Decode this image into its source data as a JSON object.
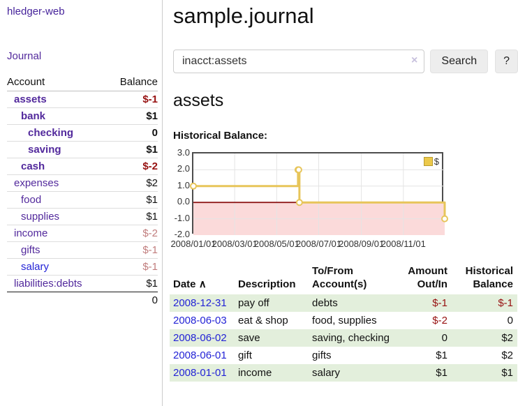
{
  "app": {
    "brand": "hledger-web"
  },
  "sidebar": {
    "journal_link": "Journal",
    "accounts": {
      "header_account": "Account",
      "header_balance": "Balance",
      "rows": [
        {
          "name": "assets",
          "balance": "$-1",
          "depth": 1,
          "name_style": "purple bold",
          "bal_style": "neg bold"
        },
        {
          "name": "bank",
          "balance": "$1",
          "depth": 2,
          "name_style": "purple bold",
          "bal_style": "plain bold"
        },
        {
          "name": "checking",
          "balance": "0",
          "depth": 3,
          "name_style": "purple bold",
          "bal_style": "plain bold"
        },
        {
          "name": "saving",
          "balance": "$1",
          "depth": 3,
          "name_style": "purple bold",
          "bal_style": "plain bold"
        },
        {
          "name": "cash",
          "balance": "$-2",
          "depth": 2,
          "name_style": "purple bold",
          "bal_style": "neg bold"
        },
        {
          "name": "expenses",
          "balance": "$2",
          "depth": 1,
          "name_style": "purple",
          "bal_style": "plain"
        },
        {
          "name": "food",
          "balance": "$1",
          "depth": 2,
          "name_style": "purple",
          "bal_style": "plain"
        },
        {
          "name": "supplies",
          "balance": "$1",
          "depth": 2,
          "name_style": "purple",
          "bal_style": "plain"
        },
        {
          "name": "income",
          "balance": "$-2",
          "depth": 1,
          "name_style": "purple",
          "bal_style": "muted"
        },
        {
          "name": "gifts",
          "balance": "$-1",
          "depth": 2,
          "name_style": "purple",
          "bal_style": "muted"
        },
        {
          "name": "salary",
          "balance": "$-1",
          "depth": 2,
          "name_style": "blue",
          "bal_style": "muted"
        },
        {
          "name": "liabilities:debts",
          "balance": "$1",
          "depth": 1,
          "name_style": "purple",
          "bal_style": "plain"
        }
      ],
      "total": "0"
    }
  },
  "main": {
    "title": "sample.journal",
    "search": {
      "value": "inacct:assets",
      "clear_icon": "×",
      "search_button": "Search",
      "help_button": "?"
    },
    "account_heading": "assets",
    "chart_title": "Historical Balance:"
  },
  "chart_data": {
    "type": "line",
    "step": true,
    "title": "Historical Balance",
    "x_domain": [
      "2008-01-01",
      "2008-12-31"
    ],
    "ylim": [
      -2,
      3
    ],
    "y_ticks": [
      "3.0",
      "2.0",
      "1.0",
      "0.0",
      "-1.0",
      "-2.0"
    ],
    "x_ticks": [
      "2008/01/01",
      "2008/03/01",
      "2008/05/01",
      "2008/07/01",
      "2008/09/01",
      "2008/11/01"
    ],
    "series": [
      {
        "name": "$",
        "points": [
          [
            "2008-01-01",
            1
          ],
          [
            "2008-06-01",
            2
          ],
          [
            "2008-06-02",
            2
          ],
          [
            "2008-06-03",
            0
          ],
          [
            "2008-12-31",
            -1
          ]
        ]
      }
    ],
    "legend": {
      "label": "$",
      "position": "top-right",
      "swatch_color": "#ecc94b"
    },
    "colors": {
      "line": "#e7c55a",
      "marker_fill": "#ffffff",
      "negative_region": "#fbdada",
      "zero_line": "#8f1a1a",
      "grid": "#e4e4e4",
      "border": "#4d4d4d"
    }
  },
  "register": {
    "headers": {
      "date": "Date",
      "sort_icon": "∧",
      "description": "Description",
      "tofrom_line1": "To/From",
      "tofrom_line2": "Account(s)",
      "amount_line1": "Amount",
      "amount_line2": "Out/In",
      "hist_line1": "Historical",
      "hist_line2": "Balance"
    },
    "rows": [
      {
        "date": "2008-12-31",
        "description": "pay off",
        "accounts": "debts",
        "amount": "$-1",
        "amount_style": "neg",
        "balance": "$-1",
        "balance_style": "neg",
        "shaded": true
      },
      {
        "date": "2008-06-03",
        "description": "eat & shop",
        "accounts": "food, supplies",
        "amount": "$-2",
        "amount_style": "neg",
        "balance": "0",
        "balance_style": "plain",
        "shaded": false
      },
      {
        "date": "2008-06-02",
        "description": "save",
        "accounts": "saving, checking",
        "amount": "0",
        "amount_style": "plain",
        "balance": "$2",
        "balance_style": "plain",
        "shaded": true
      },
      {
        "date": "2008-06-01",
        "description": "gift",
        "accounts": "gifts",
        "amount": "$1",
        "amount_style": "plain",
        "balance": "$2",
        "balance_style": "plain",
        "shaded": false
      },
      {
        "date": "2008-01-01",
        "description": "income",
        "accounts": "salary",
        "amount": "$1",
        "amount_style": "plain",
        "balance": "$1",
        "balance_style": "plain",
        "shaded": true
      }
    ]
  }
}
